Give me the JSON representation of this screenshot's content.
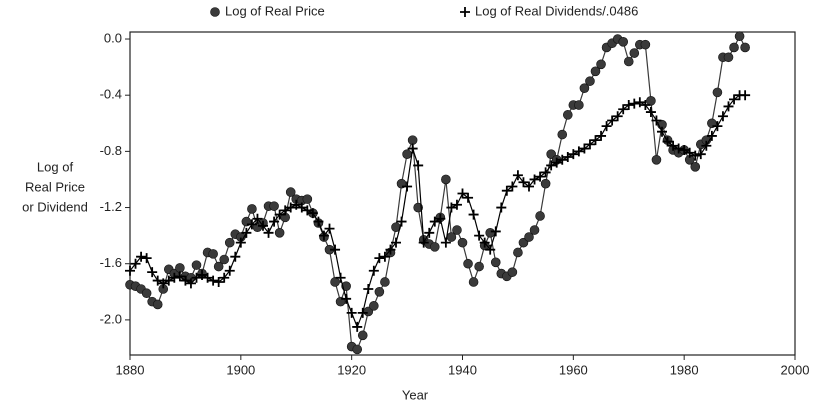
{
  "chart_data": {
    "type": "line",
    "legend_position": "top",
    "x_label": "Year",
    "y_label": [
      "Log of",
      "Real Price",
      "or Dividend"
    ],
    "xlim": [
      1880,
      2000
    ],
    "xticks": [
      1880,
      1900,
      1920,
      1940,
      1960,
      1980,
      2000
    ],
    "ylim": [
      -2.25,
      0.05
    ],
    "yticks": [
      {
        "value": 0,
        "label": "0.0"
      },
      -0.4,
      -0.8,
      -1.2,
      -1.6,
      {
        "value": -2,
        "label": "-2.0"
      }
    ],
    "x": [
      1880,
      1881,
      1882,
      1883,
      1884,
      1885,
      1886,
      1887,
      1888,
      1889,
      1890,
      1891,
      1892,
      1893,
      1894,
      1895,
      1896,
      1897,
      1898,
      1899,
      1900,
      1901,
      1902,
      1903,
      1904,
      1905,
      1906,
      1907,
      1908,
      1909,
      1910,
      1911,
      1912,
      1913,
      1914,
      1915,
      1916,
      1917,
      1918,
      1919,
      1920,
      1921,
      1922,
      1923,
      1924,
      1925,
      1926,
      1927,
      1928,
      1929,
      1930,
      1931,
      1932,
      1933,
      1934,
      1935,
      1936,
      1937,
      1938,
      1939,
      1940,
      1941,
      1942,
      1943,
      1944,
      1945,
      1946,
      1947,
      1948,
      1949,
      1950,
      1951,
      1952,
      1953,
      1954,
      1955,
      1956,
      1957,
      1958,
      1959,
      1960,
      1961,
      1962,
      1963,
      1964,
      1965,
      1966,
      1967,
      1968,
      1969,
      1970,
      1971,
      1972,
      1973,
      1974,
      1975,
      1976,
      1977,
      1978,
      1979,
      1980,
      1981,
      1982,
      1983,
      1984,
      1985,
      1986,
      1987,
      1988,
      1989,
      1990,
      1991
    ],
    "series": [
      {
        "name": "Log of Real Price",
        "marker": "circle",
        "color": "#3a3a3a",
        "values": [
          -1.75,
          -1.76,
          -1.78,
          -1.81,
          -1.87,
          -1.89,
          -1.78,
          -1.64,
          -1.67,
          -1.63,
          -1.69,
          -1.7,
          -1.61,
          -1.67,
          -1.52,
          -1.53,
          -1.62,
          -1.57,
          -1.45,
          -1.39,
          -1.41,
          -1.3,
          -1.21,
          -1.34,
          -1.31,
          -1.19,
          -1.19,
          -1.38,
          -1.27,
          -1.09,
          -1.14,
          -1.15,
          -1.14,
          -1.24,
          -1.31,
          -1.41,
          -1.5,
          -1.73,
          -1.87,
          -1.76,
          -2.19,
          -2.21,
          -2.11,
          -1.94,
          -1.9,
          -1.8,
          -1.73,
          -1.52,
          -1.34,
          -1.03,
          -0.82,
          -0.72,
          -1.2,
          -1.43,
          -1.46,
          -1.48,
          -1.27,
          -1.0,
          -1.41,
          -1.36,
          -1.45,
          -1.6,
          -1.73,
          -1.62,
          -1.47,
          -1.38,
          -1.59,
          -1.67,
          -1.69,
          -1.66,
          -1.52,
          -1.45,
          -1.41,
          -1.36,
          -1.26,
          -1.03,
          -0.82,
          -0.86,
          -0.68,
          -0.54,
          -0.47,
          -0.47,
          -0.35,
          -0.3,
          -0.23,
          -0.18,
          -0.06,
          -0.03,
          0.0,
          -0.02,
          -0.16,
          -0.1,
          -0.04,
          -0.04,
          -0.44,
          -0.86,
          -0.61,
          -0.72,
          -0.79,
          -0.81,
          -0.79,
          -0.86,
          -0.91,
          -0.75,
          -0.72,
          -0.6,
          -0.38,
          -0.13,
          -0.13,
          -0.06,
          0.02,
          -0.06
        ]
      },
      {
        "name": "Log of Real Dividends/.0486",
        "marker": "plus",
        "color": "#000000",
        "values": [
          -1.65,
          -1.6,
          -1.55,
          -1.56,
          -1.66,
          -1.72,
          -1.74,
          -1.72,
          -1.7,
          -1.69,
          -1.72,
          -1.74,
          -1.7,
          -1.68,
          -1.7,
          -1.72,
          -1.73,
          -1.7,
          -1.65,
          -1.55,
          -1.45,
          -1.38,
          -1.32,
          -1.28,
          -1.33,
          -1.38,
          -1.3,
          -1.25,
          -1.22,
          -1.2,
          -1.18,
          -1.2,
          -1.22,
          -1.24,
          -1.3,
          -1.4,
          -1.35,
          -1.5,
          -1.7,
          -1.85,
          -1.95,
          -2.05,
          -1.95,
          -1.78,
          -1.65,
          -1.56,
          -1.55,
          -1.5,
          -1.45,
          -1.3,
          -1.05,
          -0.78,
          -0.9,
          -1.45,
          -1.38,
          -1.3,
          -1.28,
          -1.45,
          -1.2,
          -1.18,
          -1.1,
          -1.13,
          -1.25,
          -1.4,
          -1.45,
          -1.5,
          -1.37,
          -1.2,
          -1.08,
          -1.05,
          -0.97,
          -1.02,
          -1.05,
          -1.0,
          -0.98,
          -0.95,
          -0.9,
          -0.88,
          -0.86,
          -0.84,
          -0.82,
          -0.8,
          -0.78,
          -0.75,
          -0.72,
          -0.69,
          -0.62,
          -0.58,
          -0.55,
          -0.5,
          -0.47,
          -0.46,
          -0.45,
          -0.47,
          -0.52,
          -0.58,
          -0.66,
          -0.73,
          -0.76,
          -0.78,
          -0.79,
          -0.81,
          -0.83,
          -0.82,
          -0.76,
          -0.69,
          -0.62,
          -0.55,
          -0.48,
          -0.43,
          -0.4,
          -0.4
        ]
      }
    ]
  }
}
